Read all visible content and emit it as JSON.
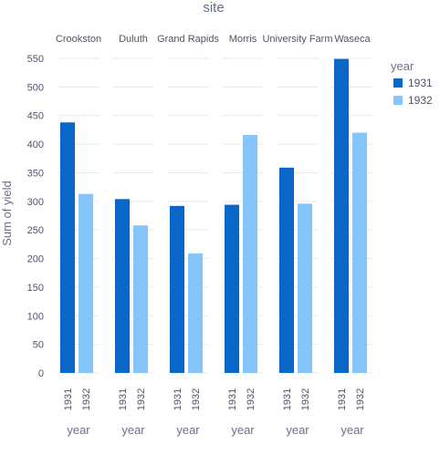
{
  "chart_data": {
    "type": "bar",
    "title": "site",
    "ylabel": "Sum of yield",
    "xlabel": "year",
    "ylim": [
      0,
      560
    ],
    "yticks": [
      0,
      50,
      100,
      150,
      200,
      250,
      300,
      350,
      400,
      450,
      500,
      550
    ],
    "grid": true,
    "legend": {
      "title": "year",
      "placement": "right"
    },
    "categories": [
      "1931",
      "1932"
    ],
    "colors": {
      "1931": "#0a66c8",
      "1932": "#86c5fb"
    },
    "facets": [
      {
        "name": "Crookston",
        "values": [
          438,
          313
        ]
      },
      {
        "name": "Duluth",
        "values": [
          304,
          258
        ]
      },
      {
        "name": "Grand Rapids",
        "values": [
          292,
          209
        ]
      },
      {
        "name": "Morris",
        "values": [
          294,
          416
        ]
      },
      {
        "name": "University Farm",
        "values": [
          359,
          296
        ]
      },
      {
        "name": "Waseca",
        "values": [
          549,
          420
        ]
      }
    ]
  }
}
